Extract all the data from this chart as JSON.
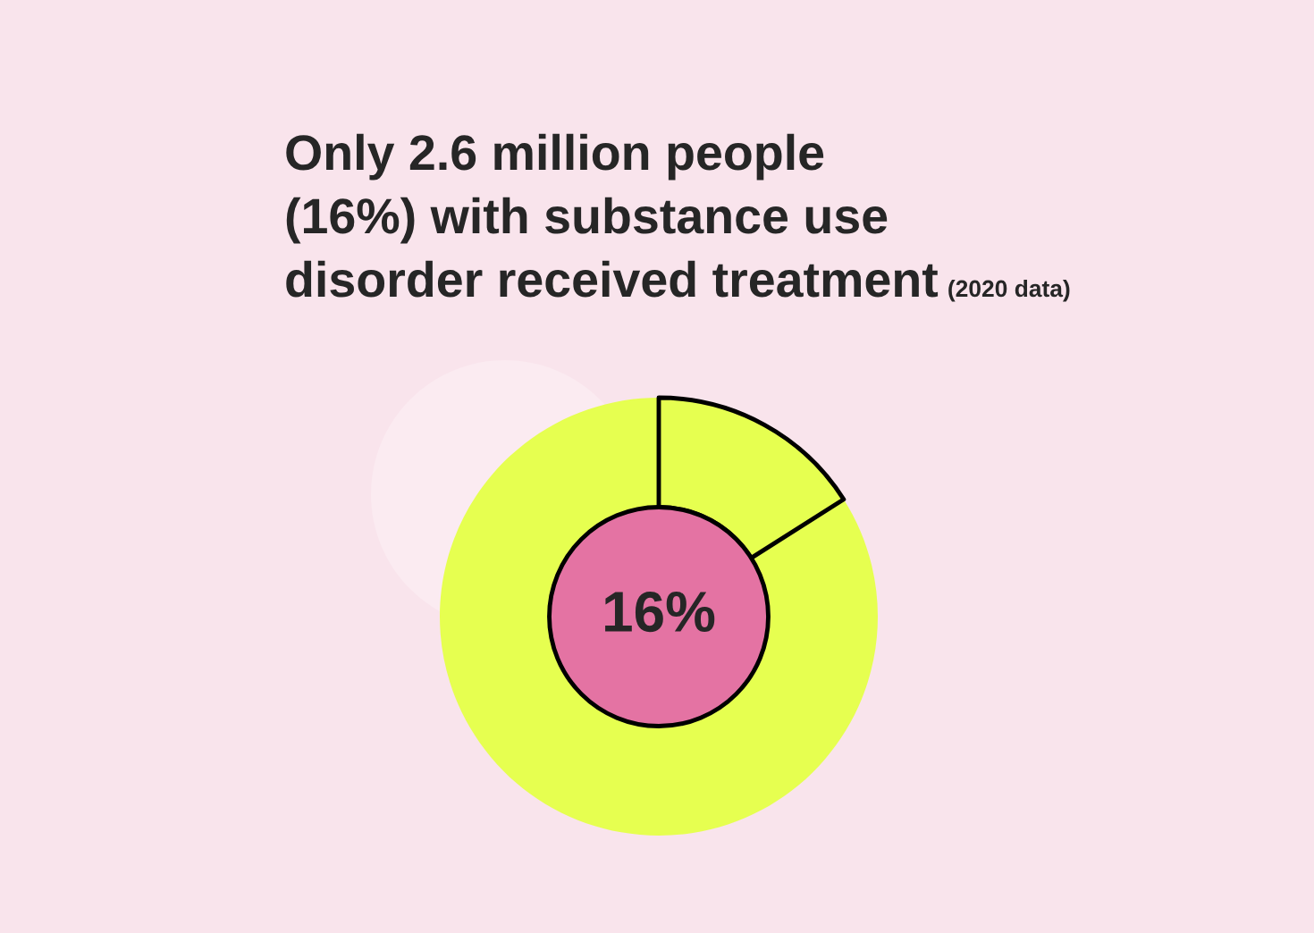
{
  "chart_data": {
    "type": "donut",
    "title": "Only 2.6 million people (16%) with substance use disorder received treatment",
    "subtitle": "(2020 data)",
    "categories": [
      null,
      null
    ],
    "values": [
      16,
      84
    ],
    "colors": [
      "#e6ff50",
      "#e6ff50"
    ],
    "value_labels": [
      "16%",
      null
    ]
  }
}
